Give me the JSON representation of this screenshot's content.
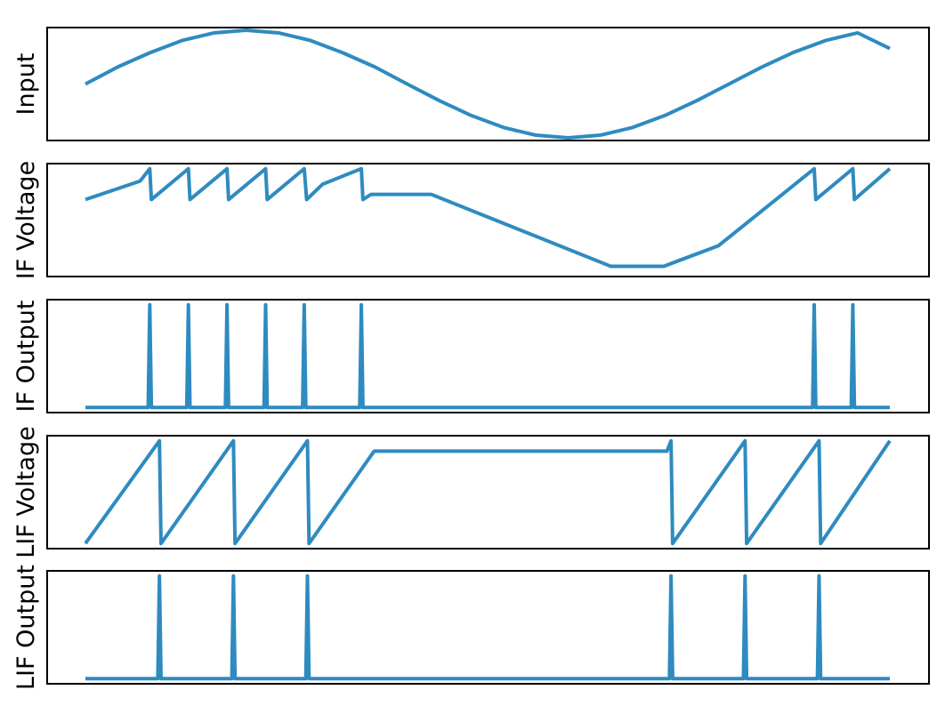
{
  "chart_data": [
    {
      "type": "line",
      "ylabel": "Input",
      "xlim": [
        0,
        1
      ],
      "ylim": [
        -1.05,
        1.05
      ],
      "grid": false,
      "series": [
        {
          "color": "#2e8bc0",
          "x": [
            0,
            0.04,
            0.08,
            0.12,
            0.16,
            0.2,
            0.24,
            0.28,
            0.32,
            0.36,
            0.4,
            0.44,
            0.48,
            0.52,
            0.56,
            0.6,
            0.64,
            0.68,
            0.72,
            0.76,
            0.8,
            0.84,
            0.88,
            0.92,
            0.96,
            1
          ],
          "y": [
            0,
            0.316,
            0.581,
            0.809,
            0.951,
            1.0,
            0.951,
            0.809,
            0.581,
            0.316,
            0,
            -0.309,
            -0.588,
            -0.809,
            -0.951,
            -1.0,
            -0.951,
            -0.809,
            -0.588,
            -0.309,
            0,
            0.309,
            0.588,
            0.809,
            0.951,
            0.66
          ]
        }
      ]
    },
    {
      "type": "line",
      "ylabel": "IF Voltage",
      "xlim": [
        0,
        1
      ],
      "ylim": [
        -0.05,
        1.05
      ],
      "grid": false,
      "series": [
        {
          "color": "#2e8bc0",
          "x": [
            0,
            0.068,
            0.08,
            0.082,
            0.128,
            0.13,
            0.176,
            0.178,
            0.224,
            0.226,
            0.272,
            0.275,
            0.295,
            0.343,
            0.345,
            0.355,
            0.43,
            0.653,
            0.719,
            0.787,
            0.906,
            0.908,
            0.954,
            0.956,
            1
          ],
          "y": [
            0.7,
            0.88,
            1,
            0.7,
            1,
            0.7,
            1,
            0.7,
            1,
            0.7,
            1,
            0.7,
            0.85,
            1,
            0.7,
            0.75,
            0.75,
            0.05,
            0.05,
            0.25,
            1,
            0.7,
            1,
            0.7,
            1
          ]
        }
      ]
    },
    {
      "type": "line",
      "ylabel": "IF Output",
      "xlim": [
        0,
        1
      ],
      "ylim": [
        -0.05,
        1.05
      ],
      "grid": false,
      "series": [
        {
          "color": "#2e8bc0",
          "x": [
            0,
            0.078,
            0.08,
            0.082,
            0.126,
            0.128,
            0.13,
            0.174,
            0.176,
            0.178,
            0.222,
            0.224,
            0.226,
            0.27,
            0.272,
            0.274,
            0.341,
            0.343,
            0.345,
            0.904,
            0.906,
            0.908,
            0.952,
            0.954,
            0.956,
            1
          ],
          "y": [
            0,
            0,
            1,
            0,
            0,
            1,
            0,
            0,
            1,
            0,
            0,
            1,
            0,
            0,
            1,
            0,
            0,
            1,
            0,
            0,
            1,
            0,
            0,
            1,
            0,
            0
          ]
        }
      ]
    },
    {
      "type": "line",
      "ylabel": "LIF Voltage",
      "xlim": [
        0,
        1
      ],
      "ylim": [
        -0.05,
        1.05
      ],
      "grid": false,
      "series": [
        {
          "color": "#2e8bc0",
          "x": [
            0,
            0.092,
            0.094,
            0.184,
            0.186,
            0.276,
            0.278,
            0.359,
            0.723,
            0.728,
            0.73,
            0.82,
            0.822,
            0.912,
            0.914,
            1
          ],
          "y": [
            0,
            1,
            0,
            1,
            0,
            1,
            0,
            0.9,
            0.9,
            1,
            0,
            1,
            0,
            1,
            0,
            1
          ]
        }
      ]
    },
    {
      "type": "line",
      "ylabel": "LIF Output",
      "xlim": [
        0,
        1
      ],
      "ylim": [
        -0.05,
        1.05
      ],
      "grid": false,
      "series": [
        {
          "color": "#2e8bc0",
          "x": [
            0,
            0.09,
            0.092,
            0.094,
            0.182,
            0.184,
            0.186,
            0.274,
            0.276,
            0.278,
            0.726,
            0.728,
            0.73,
            0.818,
            0.82,
            0.822,
            0.91,
            0.912,
            0.914,
            1
          ],
          "y": [
            0,
            0,
            1,
            0,
            0,
            1,
            0,
            0,
            1,
            0,
            0,
            1,
            0,
            0,
            1,
            0,
            0,
            1,
            0,
            0
          ]
        }
      ]
    }
  ]
}
